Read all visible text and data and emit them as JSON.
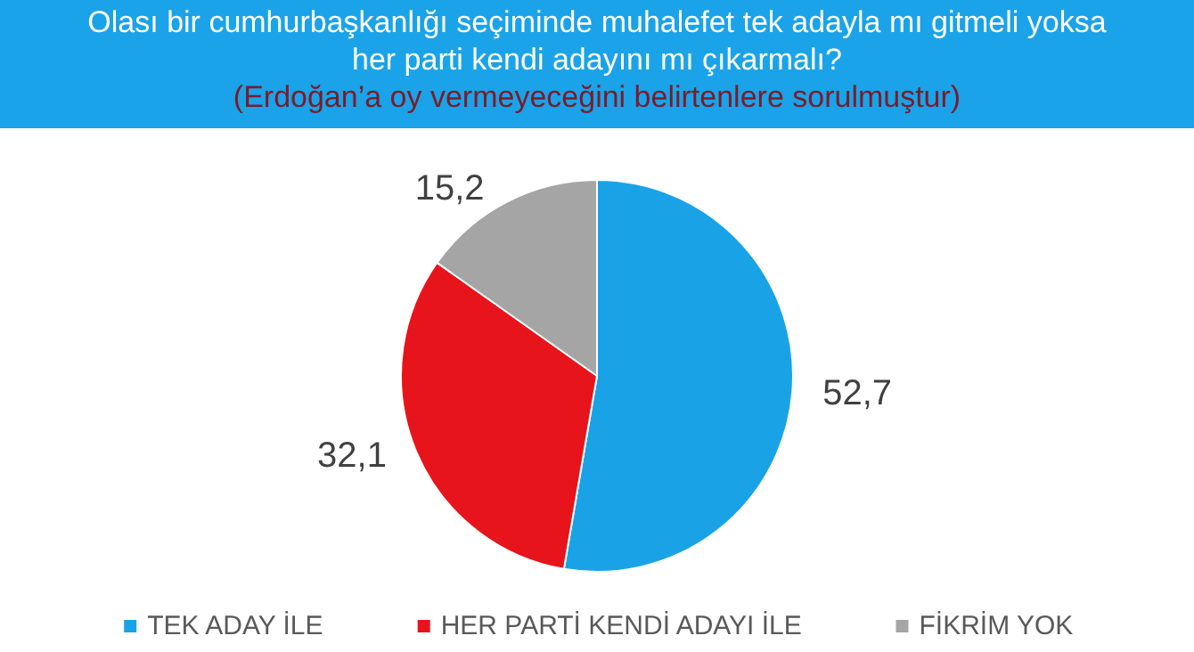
{
  "chart_data": {
    "type": "pie",
    "title": "Olası bir cumhurbaşkanlığı seçiminde muhalefet tek adayla mı gitmeli yoksa her parti kendi adayını mı çıkarmalı?",
    "subtitle": "(Erdoğan’a oy vermeyeceğini belirtenlere sorulmuştur)",
    "categories": [
      "TEK ADAY İLE",
      "HER PARTİ KENDİ ADAYI İLE",
      "FİKRİM YOK"
    ],
    "values": [
      52.7,
      32.1,
      15.2
    ],
    "value_labels": [
      "52,7",
      "32,1",
      "15,2"
    ],
    "colors": [
      "#19a3e6",
      "#e8141b",
      "#a5a5a5"
    ],
    "legend": "bottom"
  }
}
